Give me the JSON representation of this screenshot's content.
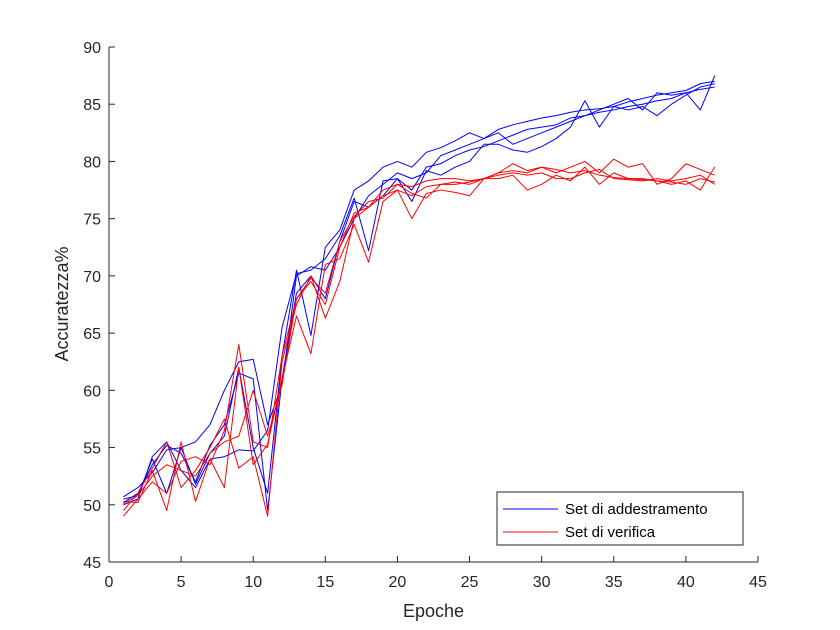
{
  "chart_data": {
    "type": "line",
    "title": "",
    "xlabel": "Epoche",
    "ylabel": "Accuratezza%",
    "xlim": [
      0,
      45
    ],
    "ylim": [
      45,
      90
    ],
    "xticks": [
      0,
      5,
      10,
      15,
      20,
      25,
      30,
      35,
      40,
      45
    ],
    "yticks": [
      45,
      50,
      55,
      60,
      65,
      70,
      75,
      80,
      85,
      90
    ],
    "grid": false,
    "legend_position": "bottom-right",
    "legend": [
      {
        "label": "Set di addestramento",
        "color": "#0000ff"
      },
      {
        "label": "Set di verifica",
        "color": "#ff0000"
      }
    ],
    "x": [
      1,
      2,
      3,
      4,
      5,
      6,
      7,
      8,
      9,
      10,
      11,
      12,
      13,
      14,
      15,
      16,
      17,
      18,
      19,
      20,
      21,
      22,
      23,
      24,
      25,
      26,
      27,
      28,
      29,
      30,
      31,
      32,
      33,
      34,
      35,
      36,
      37,
      38,
      39,
      40,
      41,
      42
    ],
    "series": [
      {
        "group": "Set di addestramento",
        "color": "#0000ff",
        "values": [
          50.5,
          50.8,
          54.0,
          51.0,
          55.0,
          51.8,
          54.5,
          56.0,
          62.0,
          55.0,
          51.0,
          63.0,
          70.5,
          64.8,
          72.5,
          74.0,
          77.5,
          78.3,
          79.5,
          80.0,
          79.5,
          80.8,
          81.2,
          81.8,
          82.5,
          82.0,
          82.8,
          83.2,
          83.5,
          83.8,
          84.0,
          84.3,
          84.5,
          84.6,
          84.8,
          85.2,
          85.5,
          85.8,
          86.0,
          86.2,
          86.8,
          87.0
        ]
      },
      {
        "group": "Set di addestramento",
        "color": "#0000ff",
        "values": [
          50.2,
          51.0,
          53.5,
          55.2,
          54.5,
          52.0,
          55.2,
          57.0,
          61.5,
          61.0,
          49.5,
          61.0,
          68.5,
          70.0,
          68.0,
          73.0,
          76.5,
          76.0,
          77.0,
          78.5,
          77.5,
          79.5,
          79.8,
          80.5,
          81.0,
          81.3,
          81.8,
          82.3,
          82.8,
          83.0,
          83.2,
          83.8,
          84.0,
          84.3,
          84.5,
          84.8,
          85.0,
          85.3,
          85.5,
          86.0,
          86.3,
          86.5
        ]
      },
      {
        "group": "Set di addestramento",
        "color": "#0000ff",
        "values": [
          50.7,
          51.5,
          52.8,
          54.8,
          55.0,
          55.5,
          57.0,
          60.0,
          62.5,
          62.7,
          57.0,
          60.5,
          70.0,
          70.8,
          70.5,
          72.5,
          75.0,
          77.0,
          78.0,
          79.0,
          78.5,
          79.0,
          80.5,
          81.0,
          81.5,
          82.0,
          82.5,
          81.5,
          82.0,
          82.5,
          83.0,
          83.5,
          84.0,
          84.5,
          85.0,
          85.5,
          84.5,
          86.0,
          85.8,
          86.0,
          84.5,
          87.5
        ]
      },
      {
        "group": "Set di addestramento",
        "color": "#0000ff",
        "values": [
          50.0,
          50.5,
          54.2,
          55.5,
          53.0,
          51.5,
          54.0,
          54.2,
          54.8,
          54.7,
          56.5,
          65.5,
          70.2,
          70.5,
          71.5,
          73.5,
          76.8,
          72.2,
          78.3,
          78.5,
          76.5,
          79.2,
          78.8,
          79.5,
          80.0,
          81.5,
          81.5,
          81.0,
          80.8,
          81.3,
          82.0,
          83.0,
          85.3,
          83.0,
          84.8,
          84.5,
          84.8,
          84.0,
          85.0,
          85.8,
          86.5,
          86.8
        ]
      },
      {
        "group": "Set di verifica",
        "color": "#ff0000",
        "values": [
          49.0,
          50.5,
          52.0,
          51.0,
          53.8,
          54.2,
          53.5,
          56.5,
          64.0,
          55.5,
          55.0,
          63.0,
          68.0,
          69.5,
          67.5,
          72.5,
          75.5,
          76.0,
          77.0,
          77.5,
          77.0,
          77.8,
          78.0,
          78.0,
          78.2,
          78.5,
          79.0,
          79.2,
          79.0,
          79.5,
          79.3,
          79.0,
          79.2,
          78.8,
          78.6,
          78.5,
          78.4,
          78.3,
          78.2,
          78.0,
          78.5,
          78.2
        ]
      },
      {
        "group": "Set di verifica",
        "color": "#ff0000",
        "values": [
          50.3,
          50.2,
          53.0,
          49.5,
          55.5,
          50.3,
          54.0,
          51.5,
          62.0,
          53.5,
          55.3,
          61.0,
          66.5,
          63.2,
          71.0,
          71.5,
          74.5,
          71.2,
          76.5,
          77.5,
          75.0,
          77.2,
          77.5,
          77.3,
          77.0,
          78.5,
          78.5,
          78.8,
          77.5,
          78.0,
          78.8,
          78.3,
          79.5,
          78.0,
          79.0,
          78.5,
          78.5,
          78.3,
          78.0,
          78.3,
          77.5,
          79.5
        ]
      },
      {
        "group": "Set di verifica",
        "color": "#ff0000",
        "values": [
          49.5,
          51.0,
          53.2,
          55.5,
          51.5,
          53.0,
          55.0,
          57.5,
          53.2,
          54.2,
          49.0,
          62.5,
          67.5,
          70.0,
          66.3,
          69.5,
          75.0,
          76.0,
          77.5,
          78.0,
          77.8,
          78.3,
          78.5,
          78.5,
          78.3,
          78.5,
          78.8,
          79.0,
          78.8,
          79.0,
          78.5,
          78.5,
          79.0,
          79.3,
          78.5,
          78.4,
          78.3,
          78.5,
          78.3,
          78.5,
          78.8,
          78.0
        ]
      },
      {
        "group": "Set di verifica",
        "color": "#ff0000",
        "values": [
          50.1,
          50.8,
          52.5,
          53.5,
          53.0,
          52.5,
          54.5,
          55.5,
          56.0,
          60.0,
          56.0,
          60.5,
          68.0,
          69.8,
          68.5,
          73.0,
          75.2,
          76.5,
          76.8,
          78.0,
          77.2,
          76.8,
          78.0,
          78.2,
          78.0,
          78.5,
          79.0,
          79.8,
          79.2,
          79.5,
          79.0,
          79.5,
          80.0,
          79.0,
          80.2,
          79.5,
          79.8,
          78.0,
          78.5,
          79.8,
          79.3,
          78.8
        ]
      }
    ]
  }
}
